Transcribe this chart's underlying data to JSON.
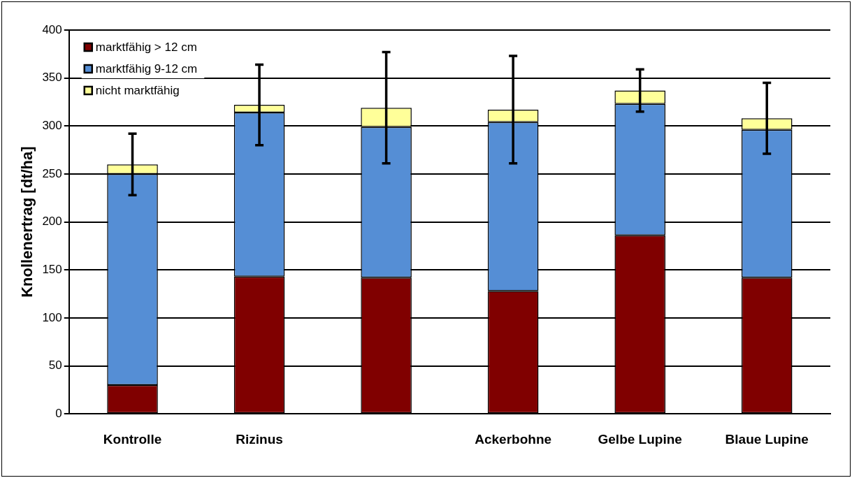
{
  "chart_data": {
    "type": "bar",
    "stacked": true,
    "ylabel": "Knollenertrag [dt/ha]",
    "categories": [
      "Kontrolle",
      "Rizinus",
      null,
      "Ackerbohne",
      "Gelbe Lupine",
      "Blaue Lupine"
    ],
    "series": [
      {
        "name": "marktfähig > 12 cm",
        "color": "#800000",
        "values": [
          30,
          143,
          142,
          128,
          186,
          142
        ]
      },
      {
        "name": "marktfähig 9-12 cm",
        "color": "#558ed5",
        "values": [
          220,
          171,
          157,
          176,
          137,
          154
        ]
      },
      {
        "name": "nicht marktfähig",
        "color": "#ffff99",
        "values": [
          10,
          8,
          20,
          13,
          14,
          12
        ],
        "errors": [
          32,
          42,
          58,
          56,
          22,
          37
        ]
      }
    ],
    "ylim": [
      0,
      400
    ],
    "yticks": [
      0,
      50,
      100,
      150,
      200,
      250,
      300,
      350,
      400
    ],
    "grid": "y",
    "legend": "top left"
  }
}
